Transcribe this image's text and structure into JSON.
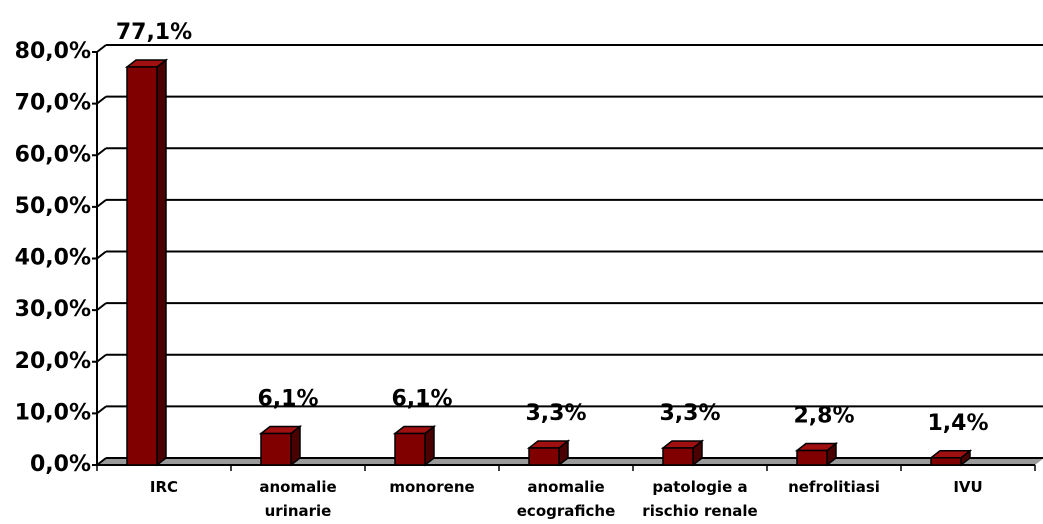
{
  "chart_data": {
    "type": "bar",
    "categories": [
      "IRC",
      "anomalie urinarie",
      "monorene",
      "anomalie ecografiche",
      "patologie a rischio renale",
      "nefrolitiasi",
      "IVU"
    ],
    "values": [
      77.1,
      6.1,
      6.1,
      3.3,
      3.3,
      2.8,
      1.4
    ],
    "value_labels": [
      "77,1%",
      "6,1%",
      "6,1%",
      "3,3%",
      "3,3%",
      "2,8%",
      "1,4%"
    ],
    "color": "#800000",
    "ylim": [
      0,
      80
    ],
    "yticks": [
      {
        "value": 0,
        "label": "0,0%"
      },
      {
        "value": 10,
        "label": "10,0%"
      },
      {
        "value": 20,
        "label": "20,0%"
      },
      {
        "value": 30,
        "label": "30,0%"
      },
      {
        "value": 40,
        "label": "40,0%"
      },
      {
        "value": 50,
        "label": "50,0%"
      },
      {
        "value": 60,
        "label": "60,0%"
      },
      {
        "value": 70,
        "label": "70,0%"
      },
      {
        "value": 80,
        "label": "80,0%"
      }
    ],
    "grid": true
  }
}
